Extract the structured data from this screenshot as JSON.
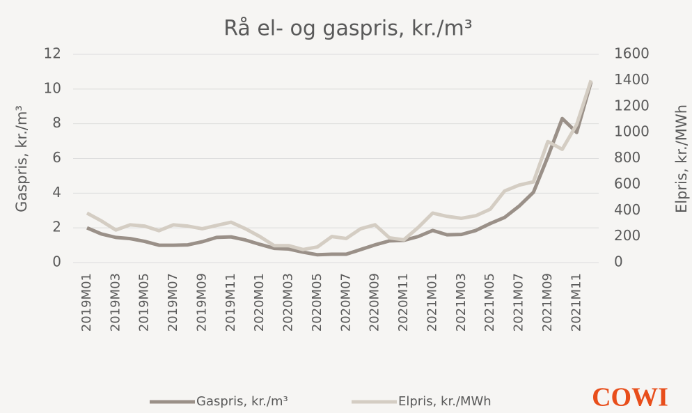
{
  "chart_data": {
    "type": "line",
    "title": "Rå el- og gaspris, kr./m³",
    "y_label": "Gaspris, kr./m³",
    "y2_label": "Elpris, kr./MWh",
    "logo": "COWI",
    "categories": [
      "2019M01",
      null,
      "2019M03",
      null,
      "2019M05",
      null,
      "2019M07",
      null,
      "2019M09",
      null,
      "2019M11",
      null,
      "2020M01",
      null,
      "2020M03",
      null,
      "2020M05",
      null,
      "2020M07",
      null,
      "2020M09",
      null,
      "2020M11",
      null,
      "2021M01",
      null,
      "2021M03",
      null,
      "2021M05",
      null,
      "2021M07",
      null,
      "2021M09",
      null,
      "2021M11",
      null
    ],
    "series": [
      {
        "name": "Gaspris, kr./m³",
        "color": "#9a9088",
        "axis": "y",
        "values": [
          2.0,
          1.65,
          1.45,
          1.38,
          1.22,
          1.0,
          1.0,
          1.02,
          1.2,
          1.45,
          1.48,
          1.3,
          1.05,
          0.82,
          0.78,
          0.6,
          0.45,
          0.48,
          0.48,
          0.75,
          1.02,
          1.25,
          1.28,
          1.5,
          1.85,
          1.6,
          1.62,
          1.85,
          2.25,
          2.6,
          3.25,
          4.05,
          6.1,
          8.3,
          7.5,
          10.4
        ]
      },
      {
        "name": "Elpris, kr./MWh",
        "color": "#d4cdc3",
        "axis": "y2",
        "values": [
          380,
          320,
          250,
          290,
          280,
          245,
          290,
          280,
          260,
          285,
          310,
          260,
          200,
          130,
          130,
          100,
          120,
          200,
          185,
          260,
          290,
          190,
          175,
          270,
          380,
          355,
          340,
          360,
          410,
          550,
          595,
          620,
          930,
          870,
          1060,
          1400
        ]
      }
    ],
    "ylim": [
      0,
      12
    ],
    "yticks": [
      0,
      2,
      4,
      6,
      8,
      10,
      12
    ],
    "y2lim": [
      0,
      1600
    ],
    "y2ticks": [
      0,
      200,
      400,
      600,
      800,
      1000,
      1200,
      1400,
      1600
    ],
    "grid": true
  }
}
